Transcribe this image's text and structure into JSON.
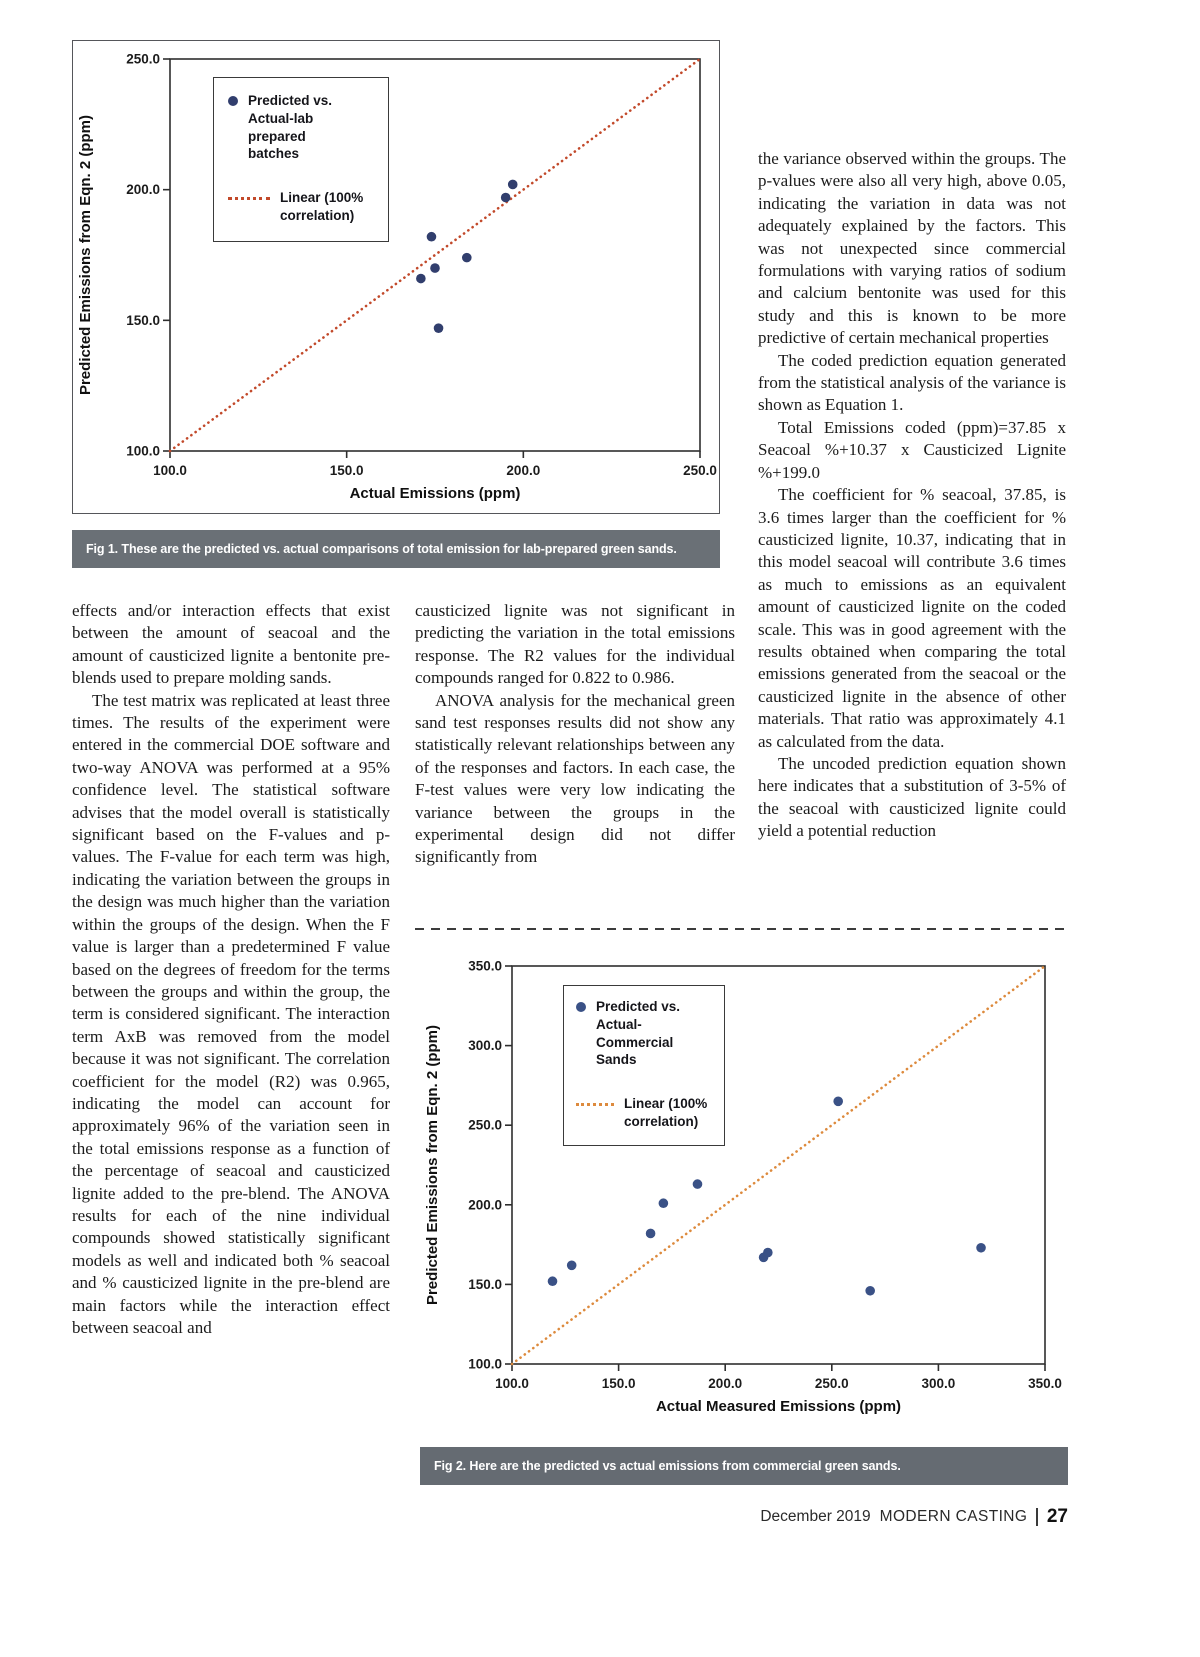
{
  "figures": {
    "fig1_caption": "Fig 1. These are the predicted vs. actual comparisons of total emission for lab-prepared green sands.",
    "fig2_caption": "Fig 2. Here are the predicted vs actual emissions from commercial green sands."
  },
  "columns": {
    "left": {
      "paras": [
        "effects and/or interaction effects that exist between the amount of seacoal and the amount of causticized lignite a bentonite pre-blends used to prepare molding sands.",
        "The test matrix was replicated at least three times. The results of the experiment were entered in the commercial DOE software and two-way ANOVA was performed at a 95% confidence level. The statistical software advises that the model overall is statistically significant based on the F-values and p-values. The F-value for each term was high, indicating the variation between the groups in the design was much higher than the variation within the groups of the design. When the F value is larger than a predetermined F value based on the degrees of freedom for the terms between the groups and within the group, the term is considered significant. The interaction term AxB was removed from the model because it was not significant. The correlation coefficient for the model (R2) was 0.965, indicating the model can account for approximately 96% of the variation seen in the total emissions response as a function of the percentage of seacoal and causticized lignite added to the pre-blend. The ANOVA results for each of the nine individual compounds showed statistically significant models as well and indicated both % seacoal and % causticized lignite in the pre-blend are main factors while the interaction effect between seacoal and"
      ]
    },
    "middle": {
      "paras": [
        "causticized lignite was not significant in predicting the variation in the total emissions response. The R2 values for the individual compounds ranged for 0.822 to 0.986.",
        "ANOVA analysis for the mechanical green sand test responses results did not show any statistically relevant relationships between any of the responses and factors. In each case, the F-test values were very low indicating the variance between the groups in the experimental design did not differ significantly from"
      ]
    },
    "right": {
      "paras": [
        "the variance observed within the groups. The p-values were also all very high, above 0.05, indicating the variation in data was not adequately explained by the factors. This was not unexpected since commercial formulations with varying ratios of sodium and calcium bentonite was used for this study and this is known to be more predictive of certain mechanical properties",
        "The coded prediction equation generated from the statistical analysis of the variance is shown as Equation 1.",
        "Total Emissions coded (ppm)=37.85 x Seacoal %+10.37 x Causticized Lignite %+199.0",
        "The coefficient for % seacoal, 37.85, is 3.6 times larger than the coefficient for % causticized lignite, 10.37, indicating that in this model seacoal will contribute 3.6 times as much to emissions as an equivalent amount of causticized lignite on the coded scale. This was in good agreement with the results obtained when comparing the total emissions generated from the seacoal or the causticized lignite in the absence of other materials. That ratio was approximately 4.1 as calculated from the data.",
        "The uncoded prediction equation shown here indicates that a substitution of 3-5% of the seacoal with causticized lignite could yield a potential reduction"
      ]
    }
  },
  "footer": {
    "issue": "December 2019",
    "magazine": "MODERN CASTING",
    "page_number": "27"
  },
  "chart_data": [
    {
      "type": "scatter",
      "title": "",
      "xlabel": "Actual Emissions (ppm)",
      "ylabel": "Predicted Emissions from Eqn. 2 (ppm)",
      "xlim": [
        100,
        250
      ],
      "ylim": [
        100,
        250
      ],
      "xticks": [
        "100.0",
        "150.0",
        "200.0",
        "250.0"
      ],
      "yticks": [
        "100.0",
        "150.0",
        "200.0",
        "250.0"
      ],
      "grid": false,
      "legend_position": "upper-left-inside",
      "point_color": "#313e6d",
      "line_color": "#c2492a",
      "legend": [
        {
          "label": "Predicted vs. Actual-lab prepared batches",
          "marker": "dot"
        },
        {
          "label": "Linear (100% correlation)",
          "marker": "dotted-line"
        }
      ],
      "series": [
        {
          "name": "Predicted vs. Actual-lab prepared batches",
          "points": [
            [
              171,
              166
            ],
            [
              174,
              182
            ],
            [
              175,
              170
            ],
            [
              176,
              147
            ],
            [
              184,
              174
            ],
            [
              195,
              197
            ],
            [
              197,
              202
            ]
          ]
        }
      ],
      "reference_line": {
        "name": "Linear (100% correlation)",
        "from": [
          100,
          100
        ],
        "to": [
          250,
          250
        ]
      }
    },
    {
      "type": "scatter",
      "title": "",
      "xlabel": "Actual Measured Emissions (ppm)",
      "ylabel": "Predicted Emissions from Eqn. 2 (ppm)",
      "xlim": [
        100,
        350
      ],
      "ylim": [
        100,
        350
      ],
      "xticks": [
        "100.0",
        "150.0",
        "200.0",
        "250.0",
        "300.0",
        "350.0"
      ],
      "yticks": [
        "100.0",
        "150.0",
        "200.0",
        "250.0",
        "300.0",
        "350.0"
      ],
      "grid": false,
      "legend_position": "upper-left-inside",
      "point_color": "#3a5186",
      "line_color": "#dd8a3d",
      "legend": [
        {
          "label": "Predicted vs. Actual-Commercial Sands",
          "marker": "dot"
        },
        {
          "label": "Linear (100% correlation)",
          "marker": "dotted-line"
        }
      ],
      "series": [
        {
          "name": "Predicted vs. Actual-Commercial Sands",
          "points": [
            [
              119,
              152
            ],
            [
              128,
              162
            ],
            [
              165,
              182
            ],
            [
              171,
              201
            ],
            [
              187,
              213
            ],
            [
              218,
              167
            ],
            [
              220,
              170
            ],
            [
              253,
              265
            ],
            [
              268,
              146
            ],
            [
              320,
              173
            ]
          ]
        }
      ],
      "reference_line": {
        "name": "Linear (100% correlation)",
        "from": [
          100,
          100
        ],
        "to": [
          350,
          350
        ]
      }
    }
  ]
}
